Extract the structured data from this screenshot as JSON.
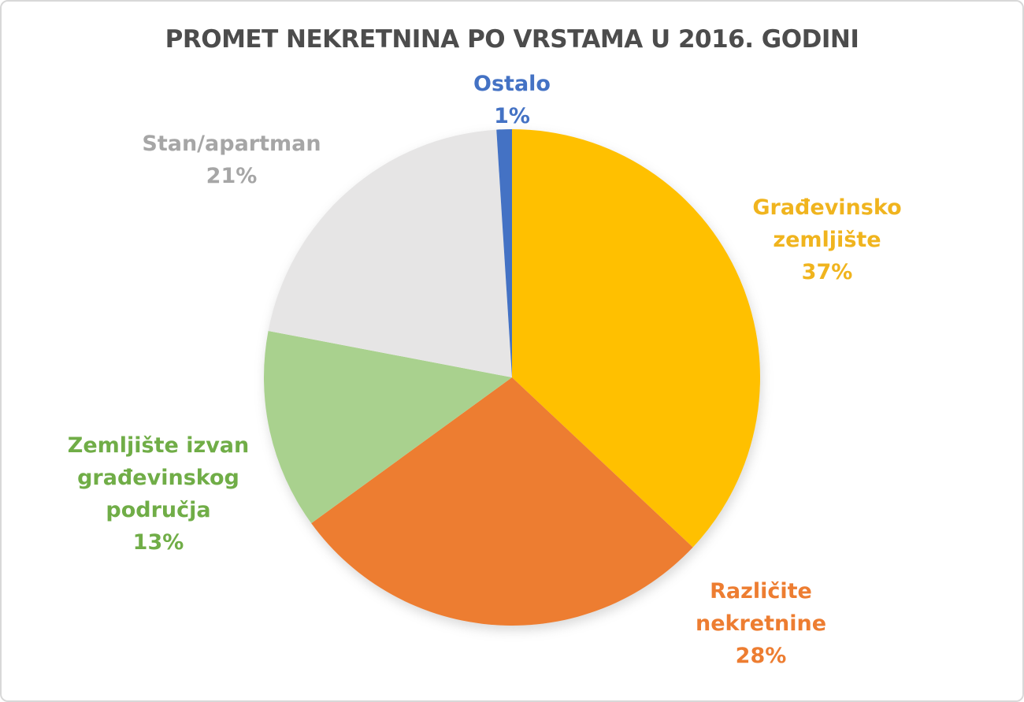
{
  "chart_data": {
    "type": "pie",
    "title": "PROMET NEKRETNINA PO VRSTAMA U 2016. GODINI",
    "title_color": "#4C4C4C",
    "start_angle_deg": 0,
    "direction": "clockwise",
    "legend_position": "outside-labels",
    "background_color": "#FFFFFF",
    "border_color": "#D8D8D8",
    "slices": [
      {
        "label": "Građevinsko zemljište",
        "value_pct": 37,
        "pct_label": "37%",
        "color": "#FFC000",
        "label_color": "#F0B41E"
      },
      {
        "label": "Različite nekretnine",
        "value_pct": 28,
        "pct_label": "28%",
        "color": "#ED7D31",
        "label_color": "#ED7D31"
      },
      {
        "label": "Zemljište izvan građevinskog područja",
        "value_pct": 13,
        "pct_label": "13%",
        "color": "#A9D18E",
        "label_color": "#70AD47"
      },
      {
        "label": "Stan/apartman",
        "value_pct": 21,
        "pct_label": "21%",
        "color": "#E6E5E5",
        "label_color": "#A6A6A6"
      },
      {
        "label": "Ostalo",
        "value_pct": 1,
        "pct_label": "1%",
        "color": "#4472C4",
        "label_color": "#4472C4"
      }
    ]
  }
}
